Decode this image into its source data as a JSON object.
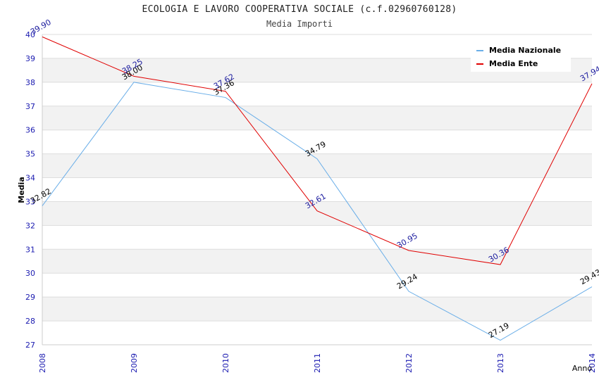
{
  "chart_data": {
    "type": "line",
    "title": "ECOLOGIA E LAVORO COOPERATIVA SOCIALE (c.f.02960760128)",
    "subtitle": "Media Importi",
    "xlabel": "Anno",
    "ylabel": "Media",
    "x": [
      "2008",
      "2009",
      "2010",
      "2011",
      "2012",
      "2013",
      "2014"
    ],
    "ylim": [
      27,
      40
    ],
    "yticks": [
      27,
      28,
      29,
      30,
      31,
      32,
      33,
      34,
      35,
      36,
      37,
      38,
      39,
      40
    ],
    "grid": true,
    "legend_position": "top-right",
    "series": [
      {
        "name": "Media Nazionale",
        "color": "#6aaee8",
        "label_color": "#000000",
        "values": [
          32.82,
          38.0,
          37.36,
          34.79,
          29.24,
          27.19,
          29.43
        ],
        "labels": [
          "32.82",
          "38.00",
          "37.36",
          "34.79",
          "29.24",
          "27.19",
          "29.43"
        ]
      },
      {
        "name": "Media Ente",
        "color": "#e00000",
        "label_color": "#1a1a9e",
        "values": [
          39.9,
          38.25,
          37.62,
          32.61,
          30.95,
          30.36,
          37.94
        ],
        "labels": [
          "39.90",
          "38.25",
          "37.62",
          "32.61",
          "30.95",
          "30.36",
          "37.94"
        ]
      }
    ]
  }
}
